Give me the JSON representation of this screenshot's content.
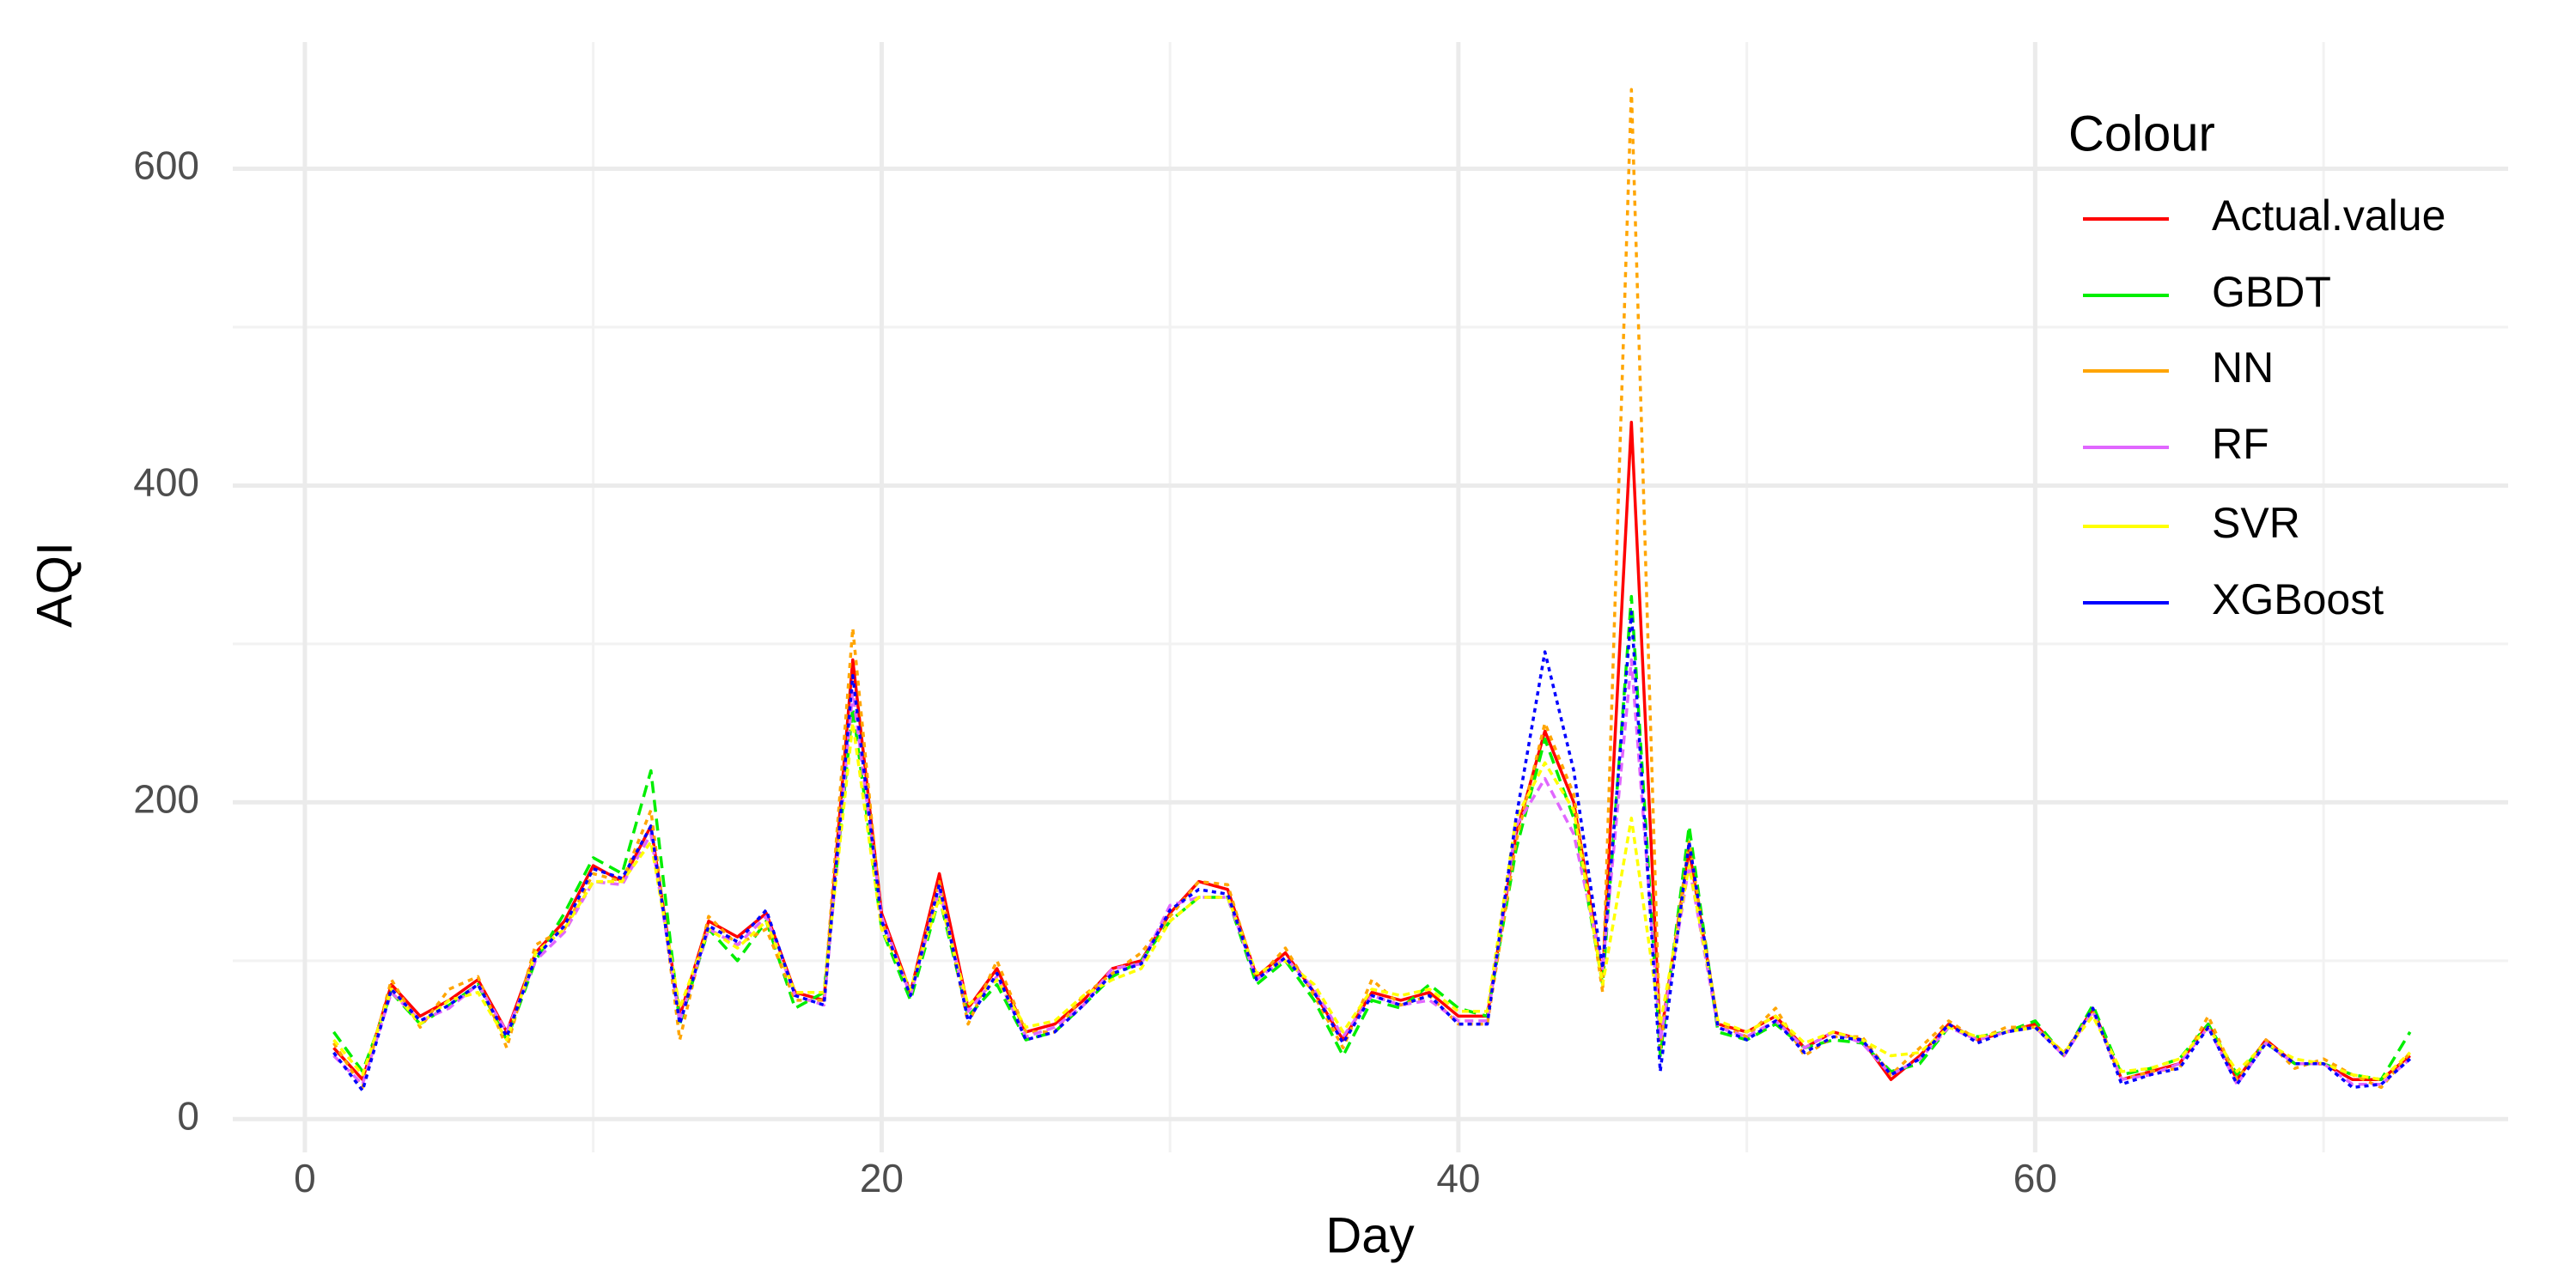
{
  "chart_data": {
    "type": "line",
    "x_label": "Day",
    "y_label": "AQI",
    "legend_title": "Colour",
    "x": [
      1,
      2,
      3,
      4,
      5,
      6,
      7,
      8,
      9,
      10,
      11,
      12,
      13,
      14,
      15,
      16,
      17,
      18,
      19,
      20,
      21,
      22,
      23,
      24,
      25,
      26,
      27,
      28,
      29,
      30,
      31,
      32,
      33,
      34,
      35,
      36,
      37,
      38,
      39,
      40,
      41,
      42,
      43,
      44,
      45,
      46,
      47,
      48,
      49,
      50,
      51,
      52,
      53,
      54,
      55,
      56,
      57,
      58,
      59,
      60,
      61,
      62,
      63,
      64,
      65,
      66,
      67,
      68,
      69,
      70,
      71,
      72,
      73
    ],
    "series": [
      {
        "name": "Actual.value",
        "color": "#ff0000",
        "dash": "none",
        "values": [
          45,
          25,
          85,
          65,
          75,
          88,
          55,
          105,
          125,
          160,
          150,
          185,
          65,
          125,
          115,
          130,
          80,
          75,
          290,
          130,
          80,
          155,
          70,
          95,
          55,
          60,
          75,
          95,
          100,
          130,
          150,
          145,
          90,
          105,
          80,
          50,
          80,
          75,
          80,
          65,
          65,
          180,
          245,
          200,
          90,
          440,
          50,
          170,
          60,
          55,
          65,
          45,
          55,
          50,
          25,
          40,
          60,
          50,
          55,
          60,
          40,
          70,
          25,
          30,
          35,
          60,
          25,
          50,
          35,
          35,
          25,
          25,
          40
        ]
      },
      {
        "name": "GBDT",
        "color": "#00ee00",
        "dash": "14 8",
        "values": [
          55,
          30,
          80,
          60,
          72,
          85,
          50,
          100,
          130,
          165,
          155,
          220,
          60,
          120,
          100,
          125,
          70,
          80,
          260,
          120,
          75,
          140,
          65,
          85,
          50,
          55,
          72,
          90,
          100,
          125,
          140,
          140,
          85,
          100,
          75,
          40,
          75,
          70,
          85,
          70,
          65,
          170,
          240,
          190,
          85,
          330,
          40,
          185,
          55,
          50,
          60,
          45,
          50,
          48,
          30,
          35,
          58,
          52,
          55,
          62,
          40,
          72,
          28,
          32,
          38,
          60,
          28,
          48,
          35,
          35,
          28,
          25,
          55
        ]
      },
      {
        "name": "NN",
        "color": "#ffa500",
        "dash": "6 6",
        "values": [
          48,
          20,
          88,
          58,
          82,
          90,
          45,
          110,
          120,
          155,
          150,
          195,
          50,
          128,
          110,
          120,
          75,
          75,
          310,
          125,
          80,
          150,
          60,
          100,
          55,
          55,
          78,
          92,
          105,
          128,
          150,
          148,
          88,
          108,
          78,
          45,
          88,
          72,
          78,
          60,
          60,
          175,
          250,
          205,
          80,
          650,
          45,
          175,
          60,
          52,
          70,
          40,
          52,
          52,
          28,
          45,
          62,
          50,
          58,
          58,
          42,
          68,
          25,
          30,
          32,
          65,
          25,
          50,
          32,
          38,
          28,
          20,
          42
        ]
      },
      {
        "name": "RF",
        "color": "#e066ff",
        "dash": "10 6",
        "values": [
          40,
          22,
          80,
          62,
          70,
          85,
          55,
          100,
          118,
          150,
          148,
          180,
          62,
          120,
          110,
          128,
          78,
          72,
          270,
          128,
          78,
          145,
          68,
          90,
          52,
          58,
          72,
          95,
          98,
          135,
          140,
          140,
          88,
          102,
          82,
          52,
          78,
          72,
          75,
          62,
          62,
          185,
          215,
          180,
          95,
          290,
          50,
          160,
          58,
          52,
          62,
          45,
          55,
          48,
          28,
          38,
          58,
          50,
          55,
          58,
          40,
          68,
          25,
          28,
          35,
          58,
          22,
          48,
          35,
          35,
          22,
          22,
          38
        ]
      },
      {
        "name": "SVR",
        "color": "#ffff00",
        "dash": "8 5",
        "values": [
          50,
          28,
          82,
          60,
          75,
          80,
          50,
          105,
          120,
          150,
          150,
          175,
          70,
          120,
          108,
          125,
          80,
          80,
          250,
          120,
          82,
          140,
          72,
          88,
          58,
          62,
          78,
          88,
          95,
          125,
          140,
          140,
          92,
          100,
          85,
          55,
          82,
          78,
          82,
          68,
          68,
          190,
          225,
          195,
          85,
          190,
          60,
          160,
          62,
          55,
          65,
          48,
          55,
          50,
          40,
          42,
          58,
          52,
          55,
          58,
          42,
          65,
          30,
          32,
          38,
          58,
          30,
          48,
          38,
          35,
          28,
          25,
          42
        ]
      },
      {
        "name": "XGBoost",
        "color": "#0000ff",
        "dash": "5 5",
        "values": [
          42,
          18,
          82,
          62,
          72,
          85,
          52,
          102,
          122,
          158,
          152,
          185,
          60,
          122,
          112,
          132,
          78,
          72,
          280,
          125,
          78,
          148,
          62,
          92,
          50,
          55,
          72,
          92,
          98,
          132,
          145,
          142,
          88,
          102,
          80,
          48,
          78,
          72,
          78,
          60,
          60,
          190,
          295,
          220,
          95,
          320,
          30,
          175,
          58,
          50,
          62,
          42,
          52,
          50,
          28,
          38,
          60,
          48,
          55,
          58,
          40,
          70,
          22,
          28,
          32,
          58,
          22,
          48,
          35,
          35,
          20,
          22,
          38
        ]
      }
    ],
    "xlim": [
      -2.5,
      76.4
    ],
    "ylim": [
      -21,
      680
    ],
    "xticks": [
      0,
      20,
      40,
      60
    ],
    "yticks": [
      0,
      200,
      400,
      600
    ],
    "minor_xticks": [
      10,
      30,
      50,
      70
    ],
    "minor_yticks": [
      100,
      300,
      500
    ],
    "grid": true,
    "legend": "right"
  }
}
